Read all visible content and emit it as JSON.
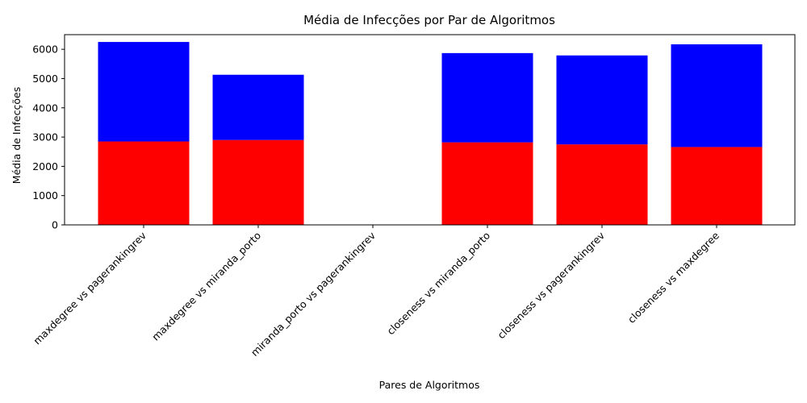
{
  "chart_data": {
    "type": "bar",
    "stacked": true,
    "title": "Média de Infecções por Par de Algoritmos",
    "xlabel": "Pares de Algoritmos",
    "ylabel": "Média de Infecções",
    "categories": [
      "maxdegree vs pagerankingrev",
      "maxdegree vs miranda_porto",
      "miranda_porto vs pagerankingrev",
      "closeness vs miranda_porto",
      "closeness vs pagerankingrev",
      "closeness vs maxdegree"
    ],
    "series": [
      {
        "color": "#ff0000",
        "values": [
          2850,
          2900,
          0,
          2820,
          2750,
          2660
        ]
      },
      {
        "color": "#0000ff",
        "values": [
          3400,
          2230,
          0,
          3050,
          3040,
          3510
        ]
      }
    ],
    "ylim": [
      0,
      6500
    ],
    "yticks": [
      0,
      1000,
      2000,
      3000,
      4000,
      5000,
      6000
    ],
    "tick_rotation": 45,
    "grid": false,
    "legend": "none"
  }
}
